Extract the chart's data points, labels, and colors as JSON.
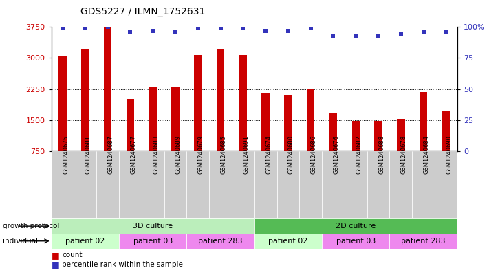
{
  "title": "GDS5227 / ILMN_1752631",
  "samples": [
    "GSM1240675",
    "GSM1240681",
    "GSM1240687",
    "GSM1240677",
    "GSM1240683",
    "GSM1240689",
    "GSM1240679",
    "GSM1240685",
    "GSM1240691",
    "GSM1240674",
    "GSM1240680",
    "GSM1240686",
    "GSM1240676",
    "GSM1240682",
    "GSM1240688",
    "GSM1240678",
    "GSM1240684",
    "GSM1240690"
  ],
  "counts": [
    3040,
    3230,
    3740,
    2020,
    2290,
    2290,
    3080,
    3230,
    3080,
    2150,
    2090,
    2260,
    1670,
    1480,
    1480,
    1530,
    2180,
    1710
  ],
  "percentile": [
    99,
    99,
    100,
    96,
    97,
    96,
    99,
    99,
    99,
    97,
    97,
    99,
    93,
    93,
    93,
    94,
    96,
    96
  ],
  "ymin": 750,
  "ymax": 3750,
  "yticks_left": [
    750,
    1500,
    2250,
    3000,
    3750
  ],
  "yticks_right": [
    0,
    25,
    50,
    75,
    100
  ],
  "bar_color": "#cc0000",
  "dot_color": "#3333bb",
  "growth_color_3d": "#bbeebb",
  "growth_color_2d": "#55bb55",
  "ind_color_02": "#ccffcc",
  "ind_color_03": "#ee88ee",
  "ind_color_283": "#ee88ee",
  "tick_bg_color": "#cccccc",
  "individual_groups": [
    {
      "label": "patient 02",
      "start": 0,
      "end": 2,
      "color": "#ccffcc"
    },
    {
      "label": "patient 03",
      "start": 3,
      "end": 5,
      "color": "#ee88ee"
    },
    {
      "label": "patient 283",
      "start": 6,
      "end": 8,
      "color": "#ee88ee"
    },
    {
      "label": "patient 02",
      "start": 9,
      "end": 11,
      "color": "#ccffcc"
    },
    {
      "label": "patient 03",
      "start": 12,
      "end": 14,
      "color": "#ee88ee"
    },
    {
      "label": "patient 283",
      "start": 15,
      "end": 17,
      "color": "#ee88ee"
    }
  ]
}
